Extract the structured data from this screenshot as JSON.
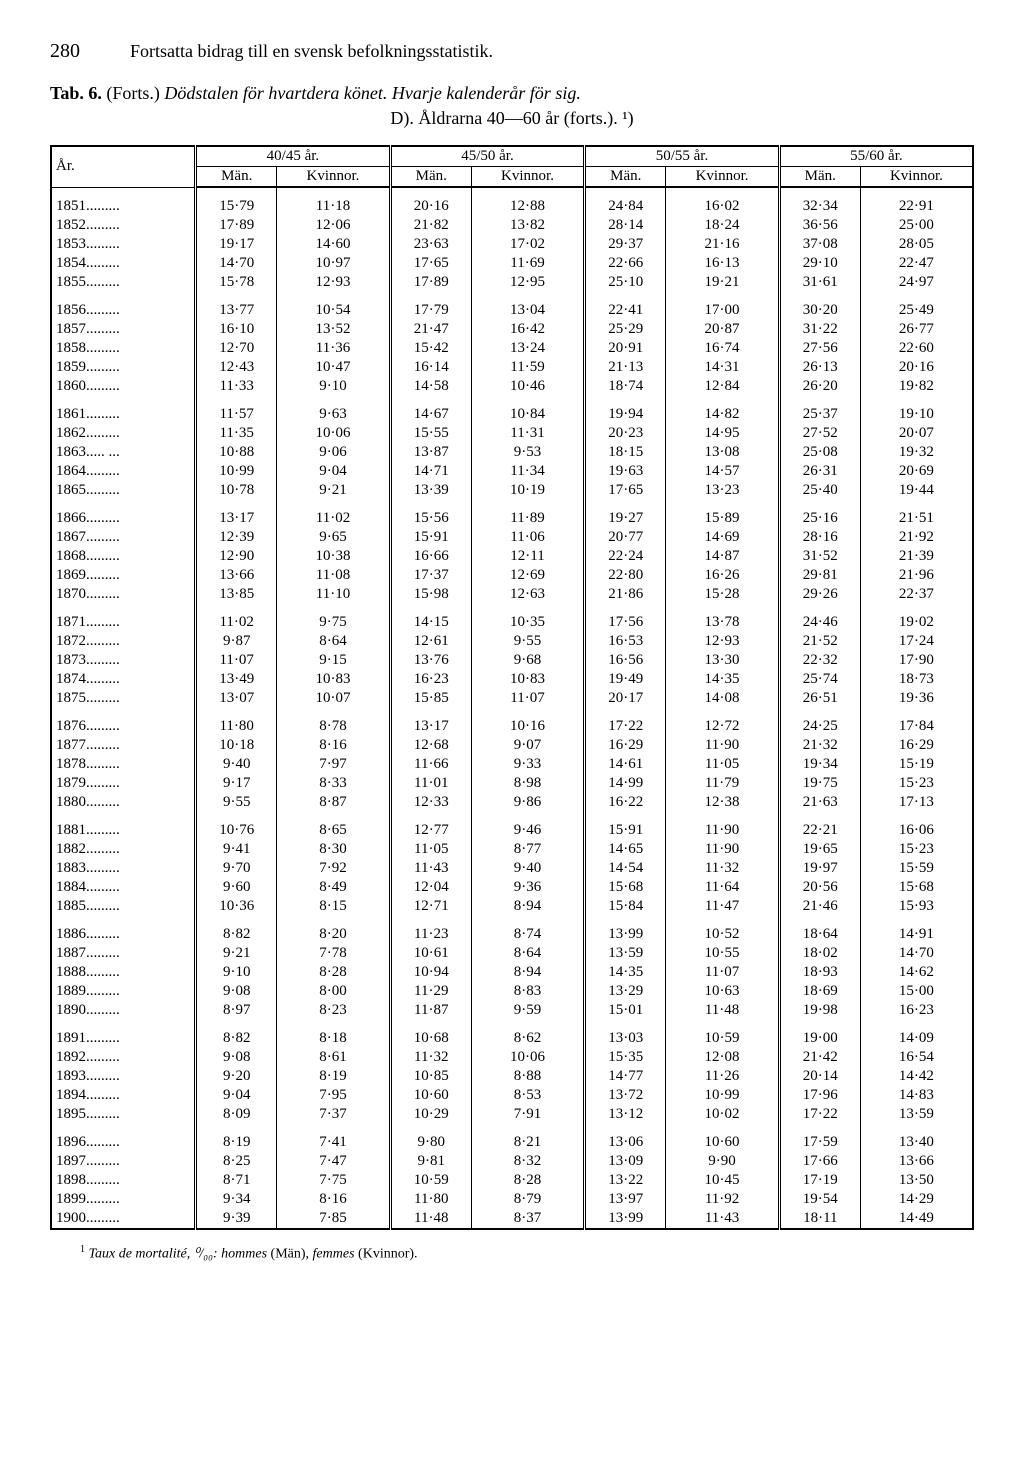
{
  "page_number": "280",
  "running_title": "Fortsatta bidrag till en svensk befolkningsstatistik.",
  "tab_label": "Tab. 6.",
  "tab_cont": "(Forts.)",
  "tab_title_italic": "Dödstalen för hvartdera könet. Hvarje kalenderår för sig.",
  "tab_sub": "D). Åldrarna 40—60 år (forts.). ¹)",
  "col_year": "År.",
  "age_groups": [
    "40/45 år.",
    "45/50 år.",
    "50/55 år.",
    "55/60 år."
  ],
  "sub_man": "Män.",
  "sub_kvin": "Kvinnor.",
  "footnote_marker": "1",
  "footnote_text_a": "Taux de mortalité, ⁰/₀₀: hommes",
  "footnote_text_b": "(Män),",
  "footnote_text_c": "femmes",
  "footnote_text_d": "(Kvinnor).",
  "groups": [
    [
      {
        "y": "1851.........",
        "v": [
          "15·79",
          "11·18",
          "20·16",
          "12·88",
          "24·84",
          "16·02",
          "32·34",
          "22·91"
        ]
      },
      {
        "y": "1852.........",
        "v": [
          "17·89",
          "12·06",
          "21·82",
          "13·82",
          "28·14",
          "18·24",
          "36·56",
          "25·00"
        ]
      },
      {
        "y": "1853.........",
        "v": [
          "19·17",
          "14·60",
          "23·63",
          "17·02",
          "29·37",
          "21·16",
          "37·08",
          "28·05"
        ]
      },
      {
        "y": "1854.........",
        "v": [
          "14·70",
          "10·97",
          "17·65",
          "11·69",
          "22·66",
          "16·13",
          "29·10",
          "22·47"
        ]
      },
      {
        "y": "1855.........",
        "v": [
          "15·78",
          "12·93",
          "17·89",
          "12·95",
          "25·10",
          "19·21",
          "31·61",
          "24·97"
        ]
      }
    ],
    [
      {
        "y": "1856.........",
        "v": [
          "13·77",
          "10·54",
          "17·79",
          "13·04",
          "22·41",
          "17·00",
          "30·20",
          "25·49"
        ]
      },
      {
        "y": "1857.........",
        "v": [
          "16·10",
          "13·52",
          "21·47",
          "16·42",
          "25·29",
          "20·87",
          "31·22",
          "26·77"
        ]
      },
      {
        "y": "1858.........",
        "v": [
          "12·70",
          "11·36",
          "15·42",
          "13·24",
          "20·91",
          "16·74",
          "27·56",
          "22·60"
        ]
      },
      {
        "y": "1859.........",
        "v": [
          "12·43",
          "10·47",
          "16·14",
          "11·59",
          "21·13",
          "14·31",
          "26·13",
          "20·16"
        ]
      },
      {
        "y": "1860.........",
        "v": [
          "11·33",
          "9·10",
          "14·58",
          "10·46",
          "18·74",
          "12·84",
          "26·20",
          "19·82"
        ]
      }
    ],
    [
      {
        "y": "1861.........",
        "v": [
          "11·57",
          "9·63",
          "14·67",
          "10·84",
          "19·94",
          "14·82",
          "25·37",
          "19·10"
        ]
      },
      {
        "y": "1862.........",
        "v": [
          "11·35",
          "10·06",
          "15·55",
          "11·31",
          "20·23",
          "14·95",
          "27·52",
          "20·07"
        ]
      },
      {
        "y": "1863..... ...",
        "v": [
          "10·88",
          "9·06",
          "13·87",
          "9·53",
          "18·15",
          "13·08",
          "25·08",
          "19·32"
        ]
      },
      {
        "y": "1864.........",
        "v": [
          "10·99",
          "9·04",
          "14·71",
          "11·34",
          "19·63",
          "14·57",
          "26·31",
          "20·69"
        ]
      },
      {
        "y": "1865.........",
        "v": [
          "10·78",
          "9·21",
          "13·39",
          "10·19",
          "17·65",
          "13·23",
          "25·40",
          "19·44"
        ]
      }
    ],
    [
      {
        "y": "1866.........",
        "v": [
          "13·17",
          "11·02",
          "15·56",
          "11·89",
          "19·27",
          "15·89",
          "25·16",
          "21·51"
        ]
      },
      {
        "y": "1867.........",
        "v": [
          "12·39",
          "9·65",
          "15·91",
          "11·06",
          "20·77",
          "14·69",
          "28·16",
          "21·92"
        ]
      },
      {
        "y": "1868.........",
        "v": [
          "12·90",
          "10·38",
          "16·66",
          "12·11",
          "22·24",
          "14·87",
          "31·52",
          "21·39"
        ]
      },
      {
        "y": "1869.........",
        "v": [
          "13·66",
          "11·08",
          "17·37",
          "12·69",
          "22·80",
          "16·26",
          "29·81",
          "21·96"
        ]
      },
      {
        "y": "1870.........",
        "v": [
          "13·85",
          "11·10",
          "15·98",
          "12·63",
          "21·86",
          "15·28",
          "29·26",
          "22·37"
        ]
      }
    ],
    [
      {
        "y": "1871.........",
        "v": [
          "11·02",
          "9·75",
          "14·15",
          "10·35",
          "17·56",
          "13·78",
          "24·46",
          "19·02"
        ]
      },
      {
        "y": "1872.........",
        "v": [
          "9·87",
          "8·64",
          "12·61",
          "9·55",
          "16·53",
          "12·93",
          "21·52",
          "17·24"
        ]
      },
      {
        "y": "1873.........",
        "v": [
          "11·07",
          "9·15",
          "13·76",
          "9·68",
          "16·56",
          "13·30",
          "22·32",
          "17·90"
        ]
      },
      {
        "y": "1874.........",
        "v": [
          "13·49",
          "10·83",
          "16·23",
          "10·83",
          "19·49",
          "14·35",
          "25·74",
          "18·73"
        ]
      },
      {
        "y": "1875.........",
        "v": [
          "13·07",
          "10·07",
          "15·85",
          "11·07",
          "20·17",
          "14·08",
          "26·51",
          "19·36"
        ]
      }
    ],
    [
      {
        "y": "1876.........",
        "v": [
          "11·80",
          "8·78",
          "13·17",
          "10·16",
          "17·22",
          "12·72",
          "24·25",
          "17·84"
        ]
      },
      {
        "y": "1877.........",
        "v": [
          "10·18",
          "8·16",
          "12·68",
          "9·07",
          "16·29",
          "11·90",
          "21·32",
          "16·29"
        ]
      },
      {
        "y": "1878.........",
        "v": [
          "9·40",
          "7·97",
          "11·66",
          "9·33",
          "14·61",
          "11·05",
          "19·34",
          "15·19"
        ]
      },
      {
        "y": "1879.........",
        "v": [
          "9·17",
          "8·33",
          "11·01",
          "8·98",
          "14·99",
          "11·79",
          "19·75",
          "15·23"
        ]
      },
      {
        "y": "1880.........",
        "v": [
          "9·55",
          "8·87",
          "12·33",
          "9·86",
          "16·22",
          "12·38",
          "21·63",
          "17·13"
        ]
      }
    ],
    [
      {
        "y": "1881.........",
        "v": [
          "10·76",
          "8·65",
          "12·77",
          "9·46",
          "15·91",
          "11·90",
          "22·21",
          "16·06"
        ]
      },
      {
        "y": "1882.........",
        "v": [
          "9·41",
          "8·30",
          "11·05",
          "8·77",
          "14·65",
          "11·90",
          "19·65",
          "15·23"
        ]
      },
      {
        "y": "1883.........",
        "v": [
          "9·70",
          "7·92",
          "11·43",
          "9·40",
          "14·54",
          "11·32",
          "19·97",
          "15·59"
        ]
      },
      {
        "y": "1884.........",
        "v": [
          "9·60",
          "8·49",
          "12·04",
          "9·36",
          "15·68",
          "11·64",
          "20·56",
          "15·68"
        ]
      },
      {
        "y": "1885.........",
        "v": [
          "10·36",
          "8·15",
          "12·71",
          "8·94",
          "15·84",
          "11·47",
          "21·46",
          "15·93"
        ]
      }
    ],
    [
      {
        "y": "1886.........",
        "v": [
          "8·82",
          "8·20",
          "11·23",
          "8·74",
          "13·99",
          "10·52",
          "18·64",
          "14·91"
        ]
      },
      {
        "y": "1887.........",
        "v": [
          "9·21",
          "7·78",
          "10·61",
          "8·64",
          "13·59",
          "10·55",
          "18·02",
          "14·70"
        ]
      },
      {
        "y": "1888.........",
        "v": [
          "9·10",
          "8·28",
          "10·94",
          "8·94",
          "14·35",
          "11·07",
          "18·93",
          "14·62"
        ]
      },
      {
        "y": "1889.........",
        "v": [
          "9·08",
          "8·00",
          "11·29",
          "8·83",
          "13·29",
          "10·63",
          "18·69",
          "15·00"
        ]
      },
      {
        "y": "1890.........",
        "v": [
          "8·97",
          "8·23",
          "11·87",
          "9·59",
          "15·01",
          "11·48",
          "19·98",
          "16·23"
        ]
      }
    ],
    [
      {
        "y": "1891.........",
        "v": [
          "8·82",
          "8·18",
          "10·68",
          "8·62",
          "13·03",
          "10·59",
          "19·00",
          "14·09"
        ]
      },
      {
        "y": "1892.........",
        "v": [
          "9·08",
          "8·61",
          "11·32",
          "10·06",
          "15·35",
          "12·08",
          "21·42",
          "16·54"
        ]
      },
      {
        "y": "1893.........",
        "v": [
          "9·20",
          "8·19",
          "10·85",
          "8·88",
          "14·77",
          "11·26",
          "20·14",
          "14·42"
        ]
      },
      {
        "y": "1894.........",
        "v": [
          "9·04",
          "7·95",
          "10·60",
          "8·53",
          "13·72",
          "10·99",
          "17·96",
          "14·83"
        ]
      },
      {
        "y": "1895.........",
        "v": [
          "8·09",
          "7·37",
          "10·29",
          "7·91",
          "13·12",
          "10·02",
          "17·22",
          "13·59"
        ]
      }
    ],
    [
      {
        "y": "1896.........",
        "v": [
          "8·19",
          "7·41",
          "9·80",
          "8·21",
          "13·06",
          "10·60",
          "17·59",
          "13·40"
        ]
      },
      {
        "y": "1897.........",
        "v": [
          "8·25",
          "7·47",
          "9·81",
          "8·32",
          "13·09",
          "9·90",
          "17·66",
          "13·66"
        ]
      },
      {
        "y": "1898.........",
        "v": [
          "8·71",
          "7·75",
          "10·59",
          "8·28",
          "13·22",
          "10·45",
          "17·19",
          "13·50"
        ]
      },
      {
        "y": "1899.........",
        "v": [
          "9·34",
          "8·16",
          "11·80",
          "8·79",
          "13·97",
          "11·92",
          "19·54",
          "14·29"
        ]
      },
      {
        "y": "1900.........",
        "v": [
          "9·39",
          "7·85",
          "11·48",
          "8·37",
          "13·99",
          "11·43",
          "18·11",
          "14·49"
        ]
      }
    ]
  ]
}
